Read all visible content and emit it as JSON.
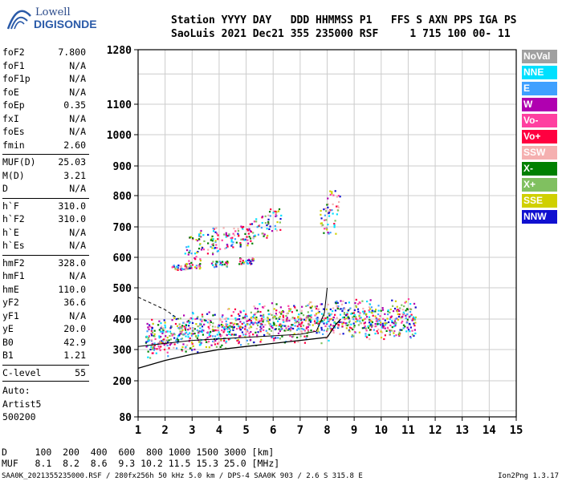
{
  "logo": {
    "line1": "Lowell",
    "line2": "DIGISONDE"
  },
  "header": {
    "row1": "Station YYYY DAY   DDD HHMMSS P1   FFS S AXN PPS IGA PS",
    "row2": "SaoLuis 2021 Dec21 355 235000 RSF     1 715 100 00- 11"
  },
  "params": [
    {
      "k": "foF2",
      "v": "7.800"
    },
    {
      "k": "foF1",
      "v": "N/A"
    },
    {
      "k": "foF1p",
      "v": "N/A"
    },
    {
      "k": "foE",
      "v": "N/A"
    },
    {
      "k": "foEp",
      "v": "0.35"
    },
    {
      "k": "fxI",
      "v": "N/A"
    },
    {
      "k": "foEs",
      "v": "N/A"
    },
    {
      "k": "fmin",
      "v": "2.60"
    },
    {
      "k": "MUF(D)",
      "v": "25.03"
    },
    {
      "k": "M(D)",
      "v": "3.21"
    },
    {
      "k": "D",
      "v": "N/A"
    },
    {
      "k": "h`F",
      "v": "310.0"
    },
    {
      "k": "h`F2",
      "v": "310.0"
    },
    {
      "k": "h`E",
      "v": "N/A"
    },
    {
      "k": "h`Es",
      "v": "N/A"
    },
    {
      "k": "hmF2",
      "v": "328.0"
    },
    {
      "k": "hmF1",
      "v": "N/A"
    },
    {
      "k": "hmE",
      "v": "110.0"
    },
    {
      "k": "yF2",
      "v": "36.6"
    },
    {
      "k": "yF1",
      "v": "N/A"
    },
    {
      "k": "yE",
      "v": "20.0"
    },
    {
      "k": "B0",
      "v": "42.9"
    },
    {
      "k": "B1",
      "v": "1.21"
    },
    {
      "k": "C-level",
      "v": "55"
    }
  ],
  "auto": [
    "Auto:",
    "Artist5",
    "500200"
  ],
  "legend": [
    {
      "label": "NoVal",
      "color": "#a0a0a0"
    },
    {
      "label": "NNE",
      "color": "#00e0ff"
    },
    {
      "label": "E",
      "color": "#3fa0ff"
    },
    {
      "label": "W",
      "color": "#b000b0"
    },
    {
      "label": "Vo-",
      "color": "#ff3fa0"
    },
    {
      "label": "Vo+",
      "color": "#ff0040"
    },
    {
      "label": "SSW",
      "color": "#f5b0b0"
    },
    {
      "label": "X-",
      "color": "#008000"
    },
    {
      "label": "X+",
      "color": "#80c060"
    },
    {
      "label": "SSE",
      "color": "#d0d000"
    },
    {
      "label": "NNW",
      "color": "#1010d0"
    }
  ],
  "dtable": {
    "row1": "D     100  200  400  600  800 1000 1500 3000 [km]",
    "row2": "MUF   8.1  8.2  8.6  9.3 10.2 11.5 15.3 25.0 [MHz]"
  },
  "footer": {
    "left": "SAA0K_2021355235000.RSF / 280fx256h 50 kHz 5.0 km / DPS-4 SAA0K 903 / 2.6 S 315.8 E",
    "right": "Ion2Png 1.3.17"
  },
  "chart_data": {
    "type": "scatter",
    "title": "",
    "xlabel": "",
    "ylabel": "",
    "x_ticks": [
      "1",
      "2",
      "3",
      "4",
      "5",
      "6",
      "7",
      "8",
      "9",
      "10",
      "11",
      "12",
      "13",
      "14",
      "15"
    ],
    "y_ticks": [
      "80",
      "200",
      "300",
      "400",
      "500",
      "600",
      "700",
      "800",
      "900",
      "1000",
      "1100",
      "1280"
    ],
    "xlim": [
      1,
      15
    ],
    "ylim_labels": "80 to 1280 km (non-linear virtual height scale)",
    "grid": true,
    "series": [
      {
        "type": "scatter-cloud",
        "points": [
          [
            1.5,
            310
          ],
          [
            2,
            320
          ],
          [
            2.5,
            330
          ],
          [
            3,
            330
          ],
          [
            3.5,
            340
          ],
          [
            4,
            340
          ],
          [
            4.5,
            345
          ],
          [
            5,
            350
          ],
          [
            5.5,
            355
          ],
          [
            6,
            360
          ],
          [
            6.5,
            355
          ],
          [
            7,
            360
          ],
          [
            7.5,
            370
          ],
          [
            8,
            360
          ],
          [
            8.5,
            380
          ],
          [
            9,
            380
          ],
          [
            9.5,
            370
          ],
          [
            10,
            360
          ],
          [
            10.5,
            370
          ],
          [
            11,
            375
          ]
        ]
      },
      {
        "type": "scatter-cloud",
        "points": [
          [
            3,
            630
          ],
          [
            3.5,
            650
          ],
          [
            4,
            660
          ],
          [
            4.5,
            670
          ],
          [
            5,
            680
          ],
          [
            5.5,
            700
          ],
          [
            6,
            720
          ],
          [
            8,
            720
          ],
          [
            8.2,
            780
          ]
        ]
      },
      {
        "type": "scatter-cloud",
        "points": [
          [
            2.5,
            570
          ],
          [
            3,
            575
          ],
          [
            4,
            580
          ],
          [
            5,
            590
          ]
        ]
      },
      {
        "type": "profile-line",
        "points": [
          [
            1,
            240
          ],
          [
            2,
            265
          ],
          [
            3,
            285
          ],
          [
            4,
            300
          ],
          [
            5,
            310
          ],
          [
            6,
            320
          ],
          [
            7,
            330
          ],
          [
            8,
            340
          ],
          [
            8.3,
            380
          ],
          [
            8.5,
            400
          ]
        ]
      },
      {
        "type": "trace-line",
        "points": [
          [
            1,
            310
          ],
          [
            2,
            320
          ],
          [
            3,
            330
          ],
          [
            4,
            335
          ],
          [
            5,
            340
          ],
          [
            6,
            345
          ],
          [
            7,
            350
          ],
          [
            7.6,
            360
          ],
          [
            7.9,
            420
          ],
          [
            8,
            500
          ]
        ]
      },
      {
        "type": "dashed-line",
        "points": [
          [
            1,
            470
          ],
          [
            1.5,
            450
          ],
          [
            2,
            430
          ],
          [
            2.5,
            400
          ]
        ]
      }
    ]
  }
}
